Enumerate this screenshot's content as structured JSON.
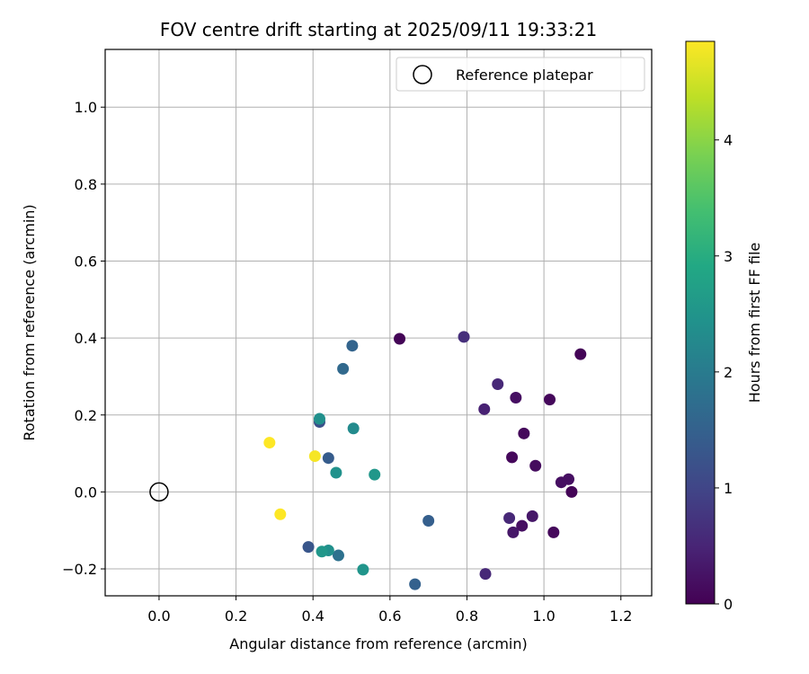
{
  "chart_data": {
    "type": "scatter",
    "title": "FOV centre drift starting at 2025/09/11 19:33:21",
    "xlabel": "Angular distance from reference (arcmin)",
    "ylabel": "Rotation from reference (arcmin)",
    "xlim": [
      -0.14,
      1.28
    ],
    "ylim": [
      -0.27,
      1.15
    ],
    "xticks": [
      0.0,
      0.2,
      0.4,
      0.6,
      0.8,
      1.0,
      1.2
    ],
    "xtick_labels": [
      "0.0",
      "0.2",
      "0.4",
      "0.6",
      "0.8",
      "1.0",
      "1.2"
    ],
    "yticks": [
      -0.2,
      0.0,
      0.2,
      0.4,
      0.6,
      0.8,
      1.0
    ],
    "ytick_labels": [
      "−0.2",
      "0.0",
      "0.2",
      "0.4",
      "0.6",
      "0.8",
      "1.0"
    ],
    "grid": true,
    "legend": {
      "placement": "top-right",
      "entries": [
        {
          "label": "Reference platepar",
          "marker": "open-circle"
        }
      ]
    },
    "reference_point": {
      "x": 0.0,
      "y": 0.0
    },
    "colorbar": {
      "label": "Hours from first FF file",
      "colormap": "viridis",
      "range": [
        0,
        4.85
      ],
      "ticks": [
        0,
        1,
        2,
        3,
        4
      ],
      "tick_labels": [
        "0",
        "1",
        "2",
        "3",
        "4"
      ]
    },
    "points": [
      {
        "x": 0.625,
        "y": 0.398,
        "hours": 0.05
      },
      {
        "x": 1.095,
        "y": 0.358,
        "hours": 0.05
      },
      {
        "x": 1.015,
        "y": 0.24,
        "hours": 0.1
      },
      {
        "x": 1.072,
        "y": 0.0,
        "hours": 0.05
      },
      {
        "x": 1.064,
        "y": 0.033,
        "hours": 0.2
      },
      {
        "x": 1.045,
        "y": 0.025,
        "hours": 0.2
      },
      {
        "x": 1.025,
        "y": -0.105,
        "hours": 0.1
      },
      {
        "x": 0.978,
        "y": 0.068,
        "hours": 0.15
      },
      {
        "x": 0.97,
        "y": -0.063,
        "hours": 0.3
      },
      {
        "x": 0.948,
        "y": 0.152,
        "hours": 0.1
      },
      {
        "x": 0.943,
        "y": -0.088,
        "hours": 0.2
      },
      {
        "x": 0.927,
        "y": 0.245,
        "hours": 0.2
      },
      {
        "x": 0.92,
        "y": -0.105,
        "hours": 0.3
      },
      {
        "x": 0.917,
        "y": 0.09,
        "hours": 0.1
      },
      {
        "x": 0.91,
        "y": -0.068,
        "hours": 0.55
      },
      {
        "x": 0.88,
        "y": 0.28,
        "hours": 0.55
      },
      {
        "x": 0.845,
        "y": 0.215,
        "hours": 0.45
      },
      {
        "x": 0.848,
        "y": -0.213,
        "hours": 0.55
      },
      {
        "x": 0.792,
        "y": 0.403,
        "hours": 0.65
      },
      {
        "x": 0.7,
        "y": -0.075,
        "hours": 1.45
      },
      {
        "x": 0.665,
        "y": -0.24,
        "hours": 1.5
      },
      {
        "x": 0.502,
        "y": 0.38,
        "hours": 1.55
      },
      {
        "x": 0.478,
        "y": 0.32,
        "hours": 1.65
      },
      {
        "x": 0.44,
        "y": 0.088,
        "hours": 1.4
      },
      {
        "x": 0.417,
        "y": 0.182,
        "hours": 1.2
      },
      {
        "x": 0.388,
        "y": -0.143,
        "hours": 1.3
      },
      {
        "x": 0.466,
        "y": -0.165,
        "hours": 1.8
      },
      {
        "x": 0.505,
        "y": 0.165,
        "hours": 2.3
      },
      {
        "x": 0.417,
        "y": 0.19,
        "hours": 2.4
      },
      {
        "x": 0.46,
        "y": 0.05,
        "hours": 2.45
      },
      {
        "x": 0.56,
        "y": 0.045,
        "hours": 2.55
      },
      {
        "x": 0.53,
        "y": -0.202,
        "hours": 2.5
      },
      {
        "x": 0.44,
        "y": -0.152,
        "hours": 2.4
      },
      {
        "x": 0.423,
        "y": -0.155,
        "hours": 2.55
      },
      {
        "x": 0.287,
        "y": 0.128,
        "hours": 4.85
      },
      {
        "x": 0.405,
        "y": 0.093,
        "hours": 4.8
      },
      {
        "x": 0.315,
        "y": -0.058,
        "hours": 4.85
      }
    ]
  }
}
